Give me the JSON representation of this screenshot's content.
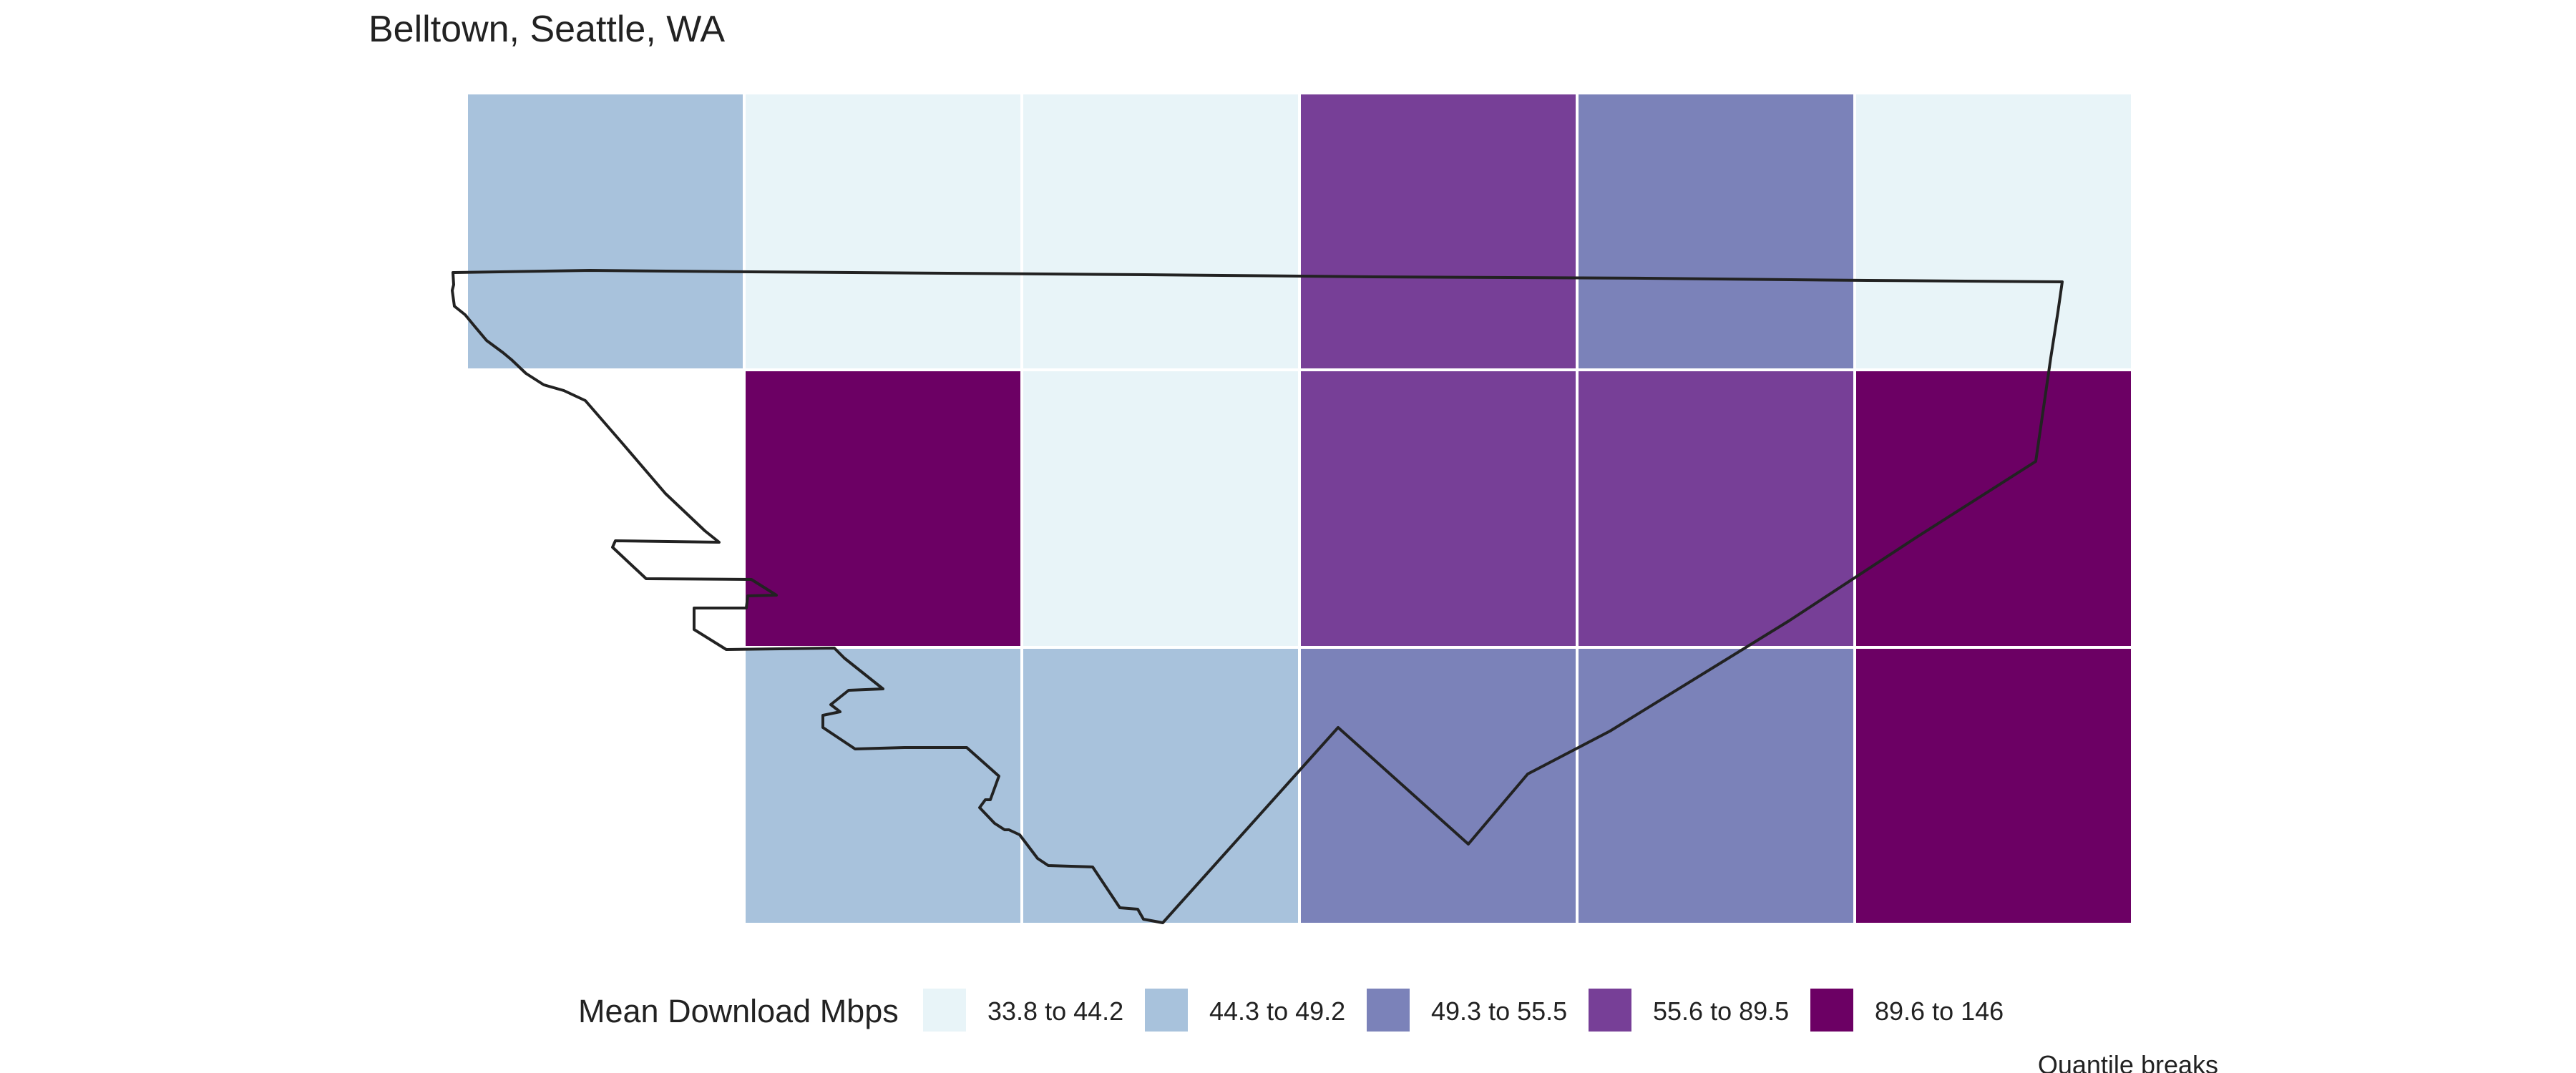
{
  "title": "Belltown, Seattle, WA",
  "tiles": [
    {
      "row": 0,
      "col": 0,
      "bin": 1
    },
    {
      "row": 0,
      "col": 1,
      "bin": 0
    },
    {
      "row": 0,
      "col": 2,
      "bin": 0
    },
    {
      "row": 0,
      "col": 3,
      "bin": 3
    },
    {
      "row": 0,
      "col": 4,
      "bin": 2
    },
    {
      "row": 0,
      "col": 5,
      "bin": 0
    },
    {
      "row": 1,
      "col": 1,
      "bin": 4
    },
    {
      "row": 1,
      "col": 2,
      "bin": 0
    },
    {
      "row": 1,
      "col": 3,
      "bin": 3
    },
    {
      "row": 1,
      "col": 4,
      "bin": 3
    },
    {
      "row": 1,
      "col": 5,
      "bin": 4
    },
    {
      "row": 2,
      "col": 1,
      "bin": 1
    },
    {
      "row": 2,
      "col": 2,
      "bin": 1
    },
    {
      "row": 2,
      "col": 3,
      "bin": 2
    },
    {
      "row": 2,
      "col": 4,
      "bin": 2
    },
    {
      "row": 2,
      "col": 5,
      "bin": 4
    }
  ],
  "legend": {
    "title": "Mean Download Mbps",
    "bins": [
      {
        "label": "33.8 to 44.2",
        "color": "#e8f4f8"
      },
      {
        "label": "44.3 to 49.2",
        "color": "#a8c2dc"
      },
      {
        "label": "49.3 to 55.5",
        "color": "#7b82b9"
      },
      {
        "label": "55.6 to 89.5",
        "color": "#773f97"
      },
      {
        "label": "89.6 to 146",
        "color": "#6c0064"
      }
    ]
  },
  "caption": "Quantile breaks",
  "outline_color": "#222222"
}
